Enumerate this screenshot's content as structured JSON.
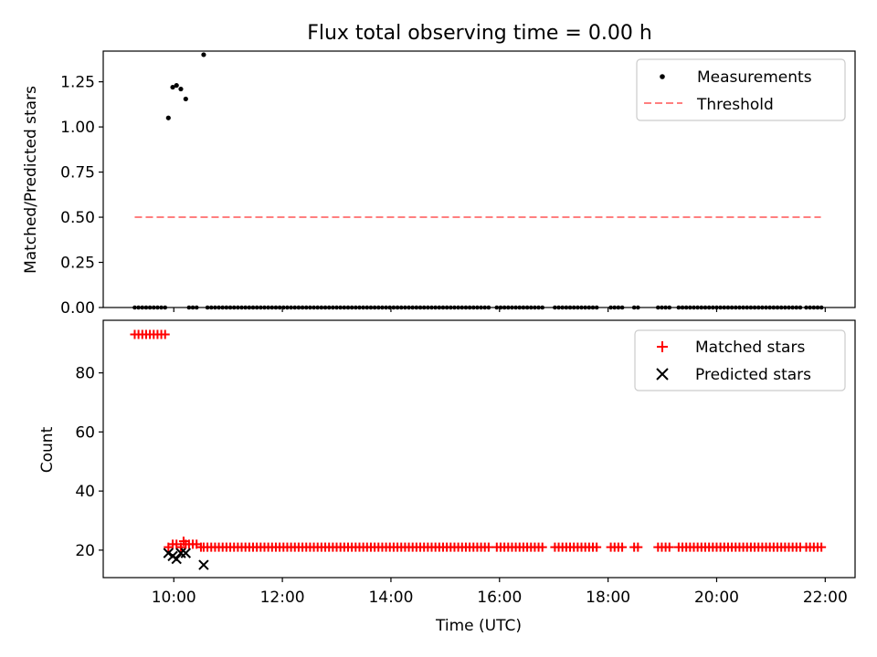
{
  "title": "Flux total observing time = 0.00 h",
  "chart_data": [
    {
      "type": "scatter",
      "ylabel": "Matched/Predicted stars",
      "xlim": [
        8.7,
        22.55
      ],
      "ylim": [
        0.0,
        1.42
      ],
      "yticks": [
        0.0,
        0.25,
        0.5,
        0.75,
        1.0,
        1.25
      ],
      "ytick_labels": [
        "0.00",
        "0.25",
        "0.50",
        "0.75",
        "1.00",
        "1.25"
      ],
      "xticks": [
        10,
        12,
        14,
        16,
        18,
        20,
        22
      ],
      "grid": false,
      "legend": {
        "position": "top-right",
        "entries": [
          "Measurements",
          "Threshold"
        ]
      },
      "colors": {
        "measurements": "#000000",
        "threshold": "#ff7f7f"
      },
      "series": [
        {
          "name": "Measurements",
          "kind": "points",
          "points": [
            [
              9.9,
              1.05
            ],
            [
              9.98,
              1.22
            ],
            [
              10.05,
              1.23
            ],
            [
              10.13,
              1.21
            ],
            [
              10.22,
              1.155
            ],
            [
              10.55,
              1.4
            ]
          ],
          "zero_runs": [
            [
              9.28,
              9.85,
              0.07
            ],
            [
              10.28,
              10.45,
              0.07
            ],
            [
              10.62,
              15.85,
              0.07
            ],
            [
              15.95,
              16.85,
              0.07
            ],
            [
              17.02,
              17.82,
              0.07
            ],
            [
              18.05,
              18.3,
              0.07
            ],
            [
              18.48,
              18.58,
              0.07
            ],
            [
              18.92,
              19.15,
              0.07
            ],
            [
              19.3,
              21.55,
              0.07
            ],
            [
              21.65,
              21.95,
              0.07
            ]
          ]
        },
        {
          "name": "Threshold",
          "kind": "dashed-line",
          "x": [
            9.28,
            21.92
          ],
          "y": [
            0.5,
            0.5
          ]
        }
      ]
    },
    {
      "type": "scatter",
      "ylabel": "Count",
      "xlabel": "Time (UTC)",
      "xlim": [
        8.7,
        22.55
      ],
      "ylim": [
        10.7,
        97.8
      ],
      "yticks": [
        20,
        40,
        60,
        80
      ],
      "xticks": [
        10,
        12,
        14,
        16,
        18,
        20,
        22
      ],
      "xtick_labels": [
        "10:00",
        "12:00",
        "14:00",
        "16:00",
        "18:00",
        "20:00",
        "22:00"
      ],
      "grid": false,
      "legend": {
        "position": "top-right",
        "entries": [
          "Matched stars",
          "Predicted stars"
        ]
      },
      "colors": {
        "matched": "#ff0000",
        "predicted": "#000000"
      },
      "series": [
        {
          "name": "Matched stars",
          "marker": "+",
          "runs": [
            [
              9.28,
              9.85,
              0.07,
              93
            ],
            [
              10.62,
              15.85,
              0.07,
              21
            ],
            [
              15.95,
              16.85,
              0.07,
              21
            ],
            [
              17.02,
              17.82,
              0.07,
              21
            ],
            [
              18.05,
              18.3,
              0.07,
              21
            ],
            [
              18.48,
              18.58,
              0.07,
              21
            ],
            [
              18.92,
              19.15,
              0.07,
              21
            ],
            [
              19.3,
              21.55,
              0.07,
              21
            ],
            [
              21.65,
              21.95,
              0.07,
              21
            ]
          ],
          "points": [
            [
              9.9,
              21
            ],
            [
              9.98,
              22
            ],
            [
              10.05,
              22
            ],
            [
              10.13,
              21
            ],
            [
              10.18,
              23
            ],
            [
              10.22,
              22
            ],
            [
              10.28,
              22
            ],
            [
              10.35,
              22
            ],
            [
              10.42,
              22
            ],
            [
              10.5,
              21
            ],
            [
              10.55,
              21
            ]
          ]
        },
        {
          "name": "Predicted stars",
          "marker": "x",
          "points": [
            [
              9.9,
              19
            ],
            [
              9.98,
              18
            ],
            [
              10.05,
              17
            ],
            [
              10.13,
              19
            ],
            [
              10.22,
              19
            ],
            [
              10.55,
              15
            ]
          ]
        }
      ]
    }
  ]
}
